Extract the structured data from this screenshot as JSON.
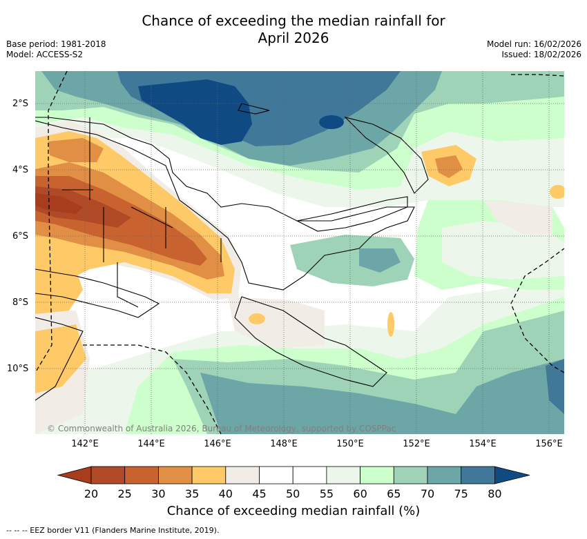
{
  "title_line1": "Chance of exceeding the median rainfall for",
  "title_line2": "April 2026",
  "meta_left": {
    "base_period": "Base period: 1981-2018",
    "model": "Model: ACCESS-S2"
  },
  "meta_right": {
    "model_run": "Model run: 16/02/2026",
    "issued": "Issued: 18/02/2026"
  },
  "lat_labels": [
    "2°S",
    "4°S",
    "6°S",
    "8°S",
    "10°S"
  ],
  "lon_labels": [
    "142°E",
    "144°E",
    "146°E",
    "148°E",
    "150°E",
    "152°E",
    "154°E",
    "156°E"
  ],
  "copyright": "© Commonwealth of Australia 2026, Bureau of Meteorology, supported by COSPPac",
  "colorbar": {
    "labels": [
      "20",
      "25",
      "30",
      "35",
      "40",
      "45",
      "50",
      "55",
      "60",
      "65",
      "70",
      "75",
      "80"
    ],
    "colors": [
      "#a83d1d",
      "#b04a26",
      "#c8622e",
      "#e08f45",
      "#fdca67",
      "#f1ede6",
      "#ffffff",
      "#ffffff",
      "#edf6ea",
      "#ccffcc",
      "#9fd3b8",
      "#6da6a6",
      "#3f7899",
      "#104a82"
    ],
    "title": "Chance of exceeding median rainfall (%)"
  },
  "footer": "--  --  -- EEZ border V11 (Flanders Marine Institute, 2019)."
}
